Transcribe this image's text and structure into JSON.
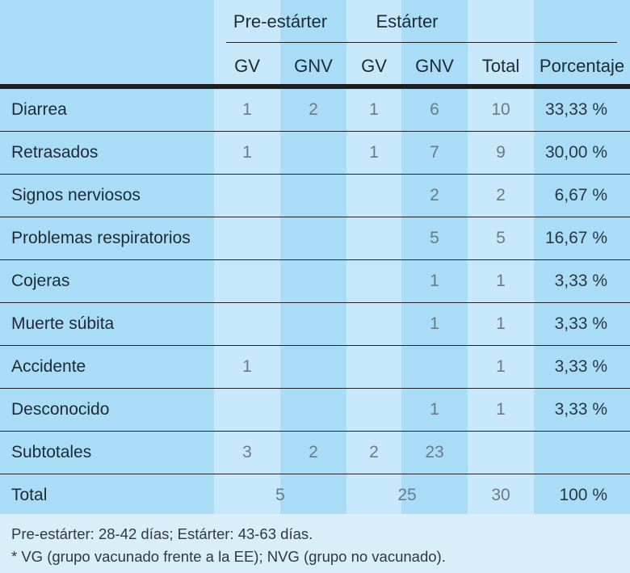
{
  "header": {
    "group1": "Pre-estárter",
    "group2": "Estárter",
    "cols": [
      "GV",
      "GNV",
      "GV",
      "GNV",
      "Total",
      "Porcentaje"
    ]
  },
  "rows": [
    {
      "label": "Diarrea",
      "v": [
        "1",
        "2",
        "1",
        "6",
        "10"
      ],
      "pct": "33,33 %"
    },
    {
      "label": "Retrasados",
      "v": [
        "1",
        "",
        "1",
        "7",
        "9"
      ],
      "pct": "30,00 %"
    },
    {
      "label": "Signos nerviosos",
      "v": [
        "",
        "",
        "",
        "2",
        "2"
      ],
      "pct": "6,67 %"
    },
    {
      "label": "Problemas respiratorios",
      "v": [
        "",
        "",
        "",
        "5",
        "5"
      ],
      "pct": "16,67 %"
    },
    {
      "label": "Cojeras",
      "v": [
        "",
        "",
        "",
        "1",
        "1"
      ],
      "pct": "3,33 %"
    },
    {
      "label": "Muerte súbita",
      "v": [
        "",
        "",
        "",
        "1",
        "1"
      ],
      "pct": "3,33 %"
    },
    {
      "label": "Accidente",
      "v": [
        "1",
        "",
        "",
        "",
        "1"
      ],
      "pct": "3,33 %"
    },
    {
      "label": "Desconocido",
      "v": [
        "",
        "",
        "",
        "1",
        "1"
      ],
      "pct": "3,33 %"
    }
  ],
  "subtotals": {
    "label": "Subtotales",
    "v": [
      "3",
      "2",
      "2",
      "23"
    ]
  },
  "total": {
    "label": "Total",
    "pre": "5",
    "est": "25",
    "total": "30",
    "pct": "100 %"
  },
  "footnote": {
    "line1": "Pre-estárter: 28-42 días; Estárter: 43-63  días.",
    "line2": "* VG (grupo vacunado frente a la EE); NVG (grupo no vacunado)."
  }
}
